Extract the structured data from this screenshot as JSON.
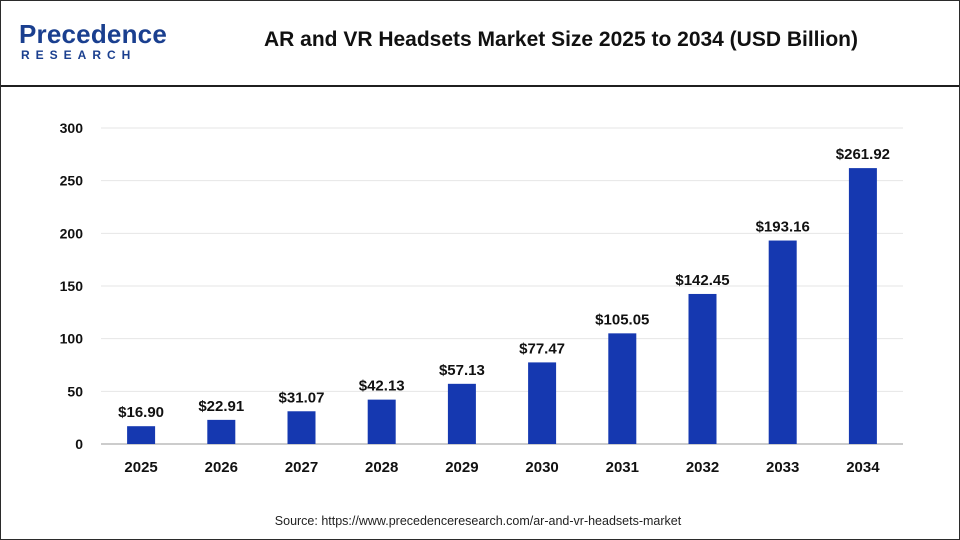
{
  "header": {
    "logo_word": "Precedence",
    "logo_sub": "RESEARCH",
    "title": "AR and VR Headsets Market Size 2025 to 2034 (USD Billion)"
  },
  "footer": {
    "source": "Source: https://www.precedenceresearch.com/ar-and-vr-headsets-market"
  },
  "colors": {
    "bar": "#1538b0",
    "brand": "#1a3f8f",
    "grid": "#e6e6e6",
    "axis": "#999999",
    "text": "#111111"
  },
  "chart_data": {
    "type": "bar",
    "title": "AR and VR Headsets Market Size 2025 to 2034 (USD Billion)",
    "categories": [
      "2025",
      "2026",
      "2027",
      "2028",
      "2029",
      "2030",
      "2031",
      "2032",
      "2033",
      "2034"
    ],
    "values": [
      16.9,
      22.91,
      31.07,
      42.13,
      57.13,
      77.47,
      105.05,
      142.45,
      193.16,
      261.92
    ],
    "value_labels": [
      "$16.90",
      "$22.91",
      "$31.07",
      "$42.13",
      "$57.13",
      "$77.47",
      "$105.05",
      "$142.45",
      "$193.16",
      "$261.92"
    ],
    "yticks": [
      0,
      50,
      100,
      150,
      200,
      250,
      300
    ],
    "ylim": [
      0,
      300
    ],
    "xlabel": "",
    "ylabel": "",
    "grid": true,
    "legend": "none"
  }
}
